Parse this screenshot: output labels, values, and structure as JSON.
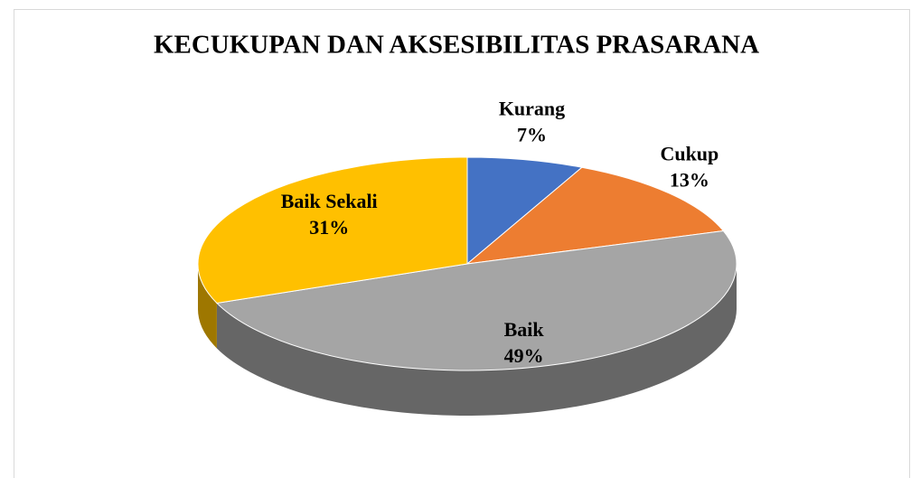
{
  "chart_data": {
    "type": "pie",
    "title": "KECUKUPAN DAN AKSESIBILITAS PRASARANA",
    "categories": [
      "Kurang",
      "Cukup",
      "Baik",
      "Baik Sekali"
    ],
    "values": [
      7,
      13,
      49,
      31
    ],
    "value_labels": [
      "7%",
      "13%",
      "49%",
      "31%"
    ],
    "colors": [
      "#4472c4",
      "#ed7d31",
      "#a5a5a5",
      "#ffc000"
    ]
  }
}
